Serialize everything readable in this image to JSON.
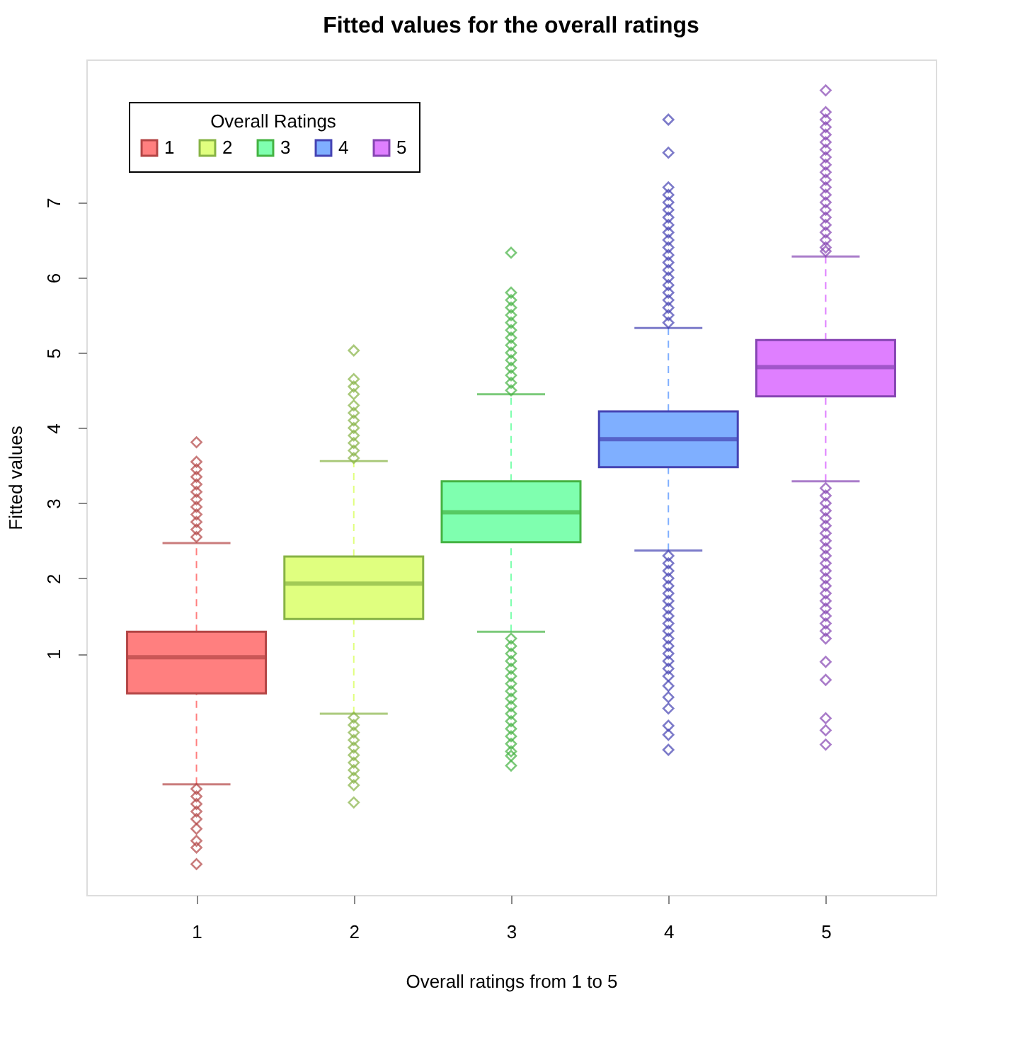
{
  "chart_data": {
    "type": "box",
    "title": "Fitted values for the overall ratings",
    "xlabel": "Overall ratings from 1 to 5",
    "ylabel": "Fitted values",
    "legend_title": "Overall Ratings",
    "legend": "top left",
    "grid": false,
    "marker": "diamond",
    "categories": [
      "1",
      "2",
      "3",
      "4",
      "5"
    ],
    "ylim": [
      -2.21,
      8.9
    ],
    "yticks": [
      1,
      2,
      3,
      4,
      5,
      6,
      7
    ],
    "series": [
      {
        "name": "1",
        "color": "#ff7f7f",
        "boxes": [
          {
            "low": -0.74,
            "q1": 0.47,
            "median": 0.95,
            "q3": 1.29,
            "high": 2.47,
            "outliers": [
              3.81,
              3.55,
              3.45,
              3.35,
              3.25,
              3.15,
              3.05,
              2.95,
              2.85,
              2.75,
              2.65,
              2.55,
              -0.8,
              -0.9,
              -1.0,
              -1.1,
              -1.2,
              -1.33,
              -1.49,
              -1.58,
              -1.8
            ]
          },
          null,
          null,
          null,
          null
        ]
      },
      {
        "name": "2",
        "color": "#e0ff7f",
        "boxes": [
          null,
          {
            "low": 0.2,
            "q1": 1.46,
            "median": 1.93,
            "q3": 2.29,
            "high": 3.56,
            "outliers": [
              5.03,
              4.65,
              4.55,
              4.45,
              4.3,
              4.2,
              4.1,
              4.0,
              3.9,
              3.8,
              3.7,
              3.6,
              0.15,
              0.05,
              -0.05,
              -0.15,
              -0.25,
              -0.35,
              -0.45,
              -0.55,
              -0.65,
              -0.75,
              -0.98
            ]
          },
          null,
          null,
          null
        ]
      },
      {
        "name": "3",
        "color": "#7fffaf",
        "boxes": [
          null,
          null,
          {
            "low": 1.29,
            "q1": 2.48,
            "median": 2.88,
            "q3": 3.29,
            "high": 4.45,
            "outliers": [
              6.33,
              5.8,
              5.7,
              5.6,
              5.5,
              5.4,
              5.3,
              5.2,
              5.1,
              5.0,
              4.9,
              4.8,
              4.7,
              4.6,
              4.5,
              1.2,
              1.1,
              1.0,
              0.9,
              0.8,
              0.7,
              0.6,
              0.5,
              0.4,
              0.3,
              0.2,
              0.1,
              0.0,
              -0.1,
              -0.2,
              -0.3,
              -0.36,
              -0.49
            ]
          },
          null,
          null
        ]
      },
      {
        "name": "4",
        "color": "#7fafff",
        "boxes": [
          null,
          null,
          null,
          {
            "low": 2.37,
            "q1": 3.48,
            "median": 3.85,
            "q3": 4.22,
            "high": 5.33,
            "outliers": [
              8.1,
              7.66,
              7.2,
              7.1,
              7.0,
              6.9,
              6.8,
              6.7,
              6.6,
              6.5,
              6.4,
              6.3,
              6.2,
              6.1,
              6.0,
              5.9,
              5.8,
              5.7,
              5.6,
              5.5,
              5.4,
              2.3,
              2.2,
              2.1,
              2.0,
              1.9,
              1.8,
              1.7,
              1.6,
              1.5,
              1.4,
              1.3,
              1.2,
              1.1,
              1.0,
              0.9,
              0.8,
              0.7,
              0.57,
              0.42,
              0.27,
              0.04,
              -0.08,
              -0.28
            ]
          },
          null
        ]
      },
      {
        "name": "5",
        "color": "#df7fff",
        "boxes": [
          null,
          null,
          null,
          null,
          {
            "low": 3.29,
            "q1": 4.42,
            "median": 4.81,
            "q3": 5.17,
            "high": 6.28,
            "outliers": [
              8.49,
              8.2,
              8.1,
              8.0,
              7.9,
              7.8,
              7.7,
              7.6,
              7.5,
              7.4,
              7.3,
              7.2,
              7.1,
              7.0,
              6.9,
              6.8,
              6.7,
              6.6,
              6.5,
              6.4,
              6.35,
              3.2,
              3.1,
              3.0,
              2.9,
              2.8,
              2.7,
              2.6,
              2.5,
              2.4,
              2.3,
              2.2,
              2.1,
              2.0,
              1.9,
              1.8,
              1.7,
              1.6,
              1.5,
              1.4,
              1.3,
              1.2,
              0.89,
              0.65,
              0.14,
              -0.02,
              -0.21
            ]
          }
        ]
      }
    ]
  }
}
